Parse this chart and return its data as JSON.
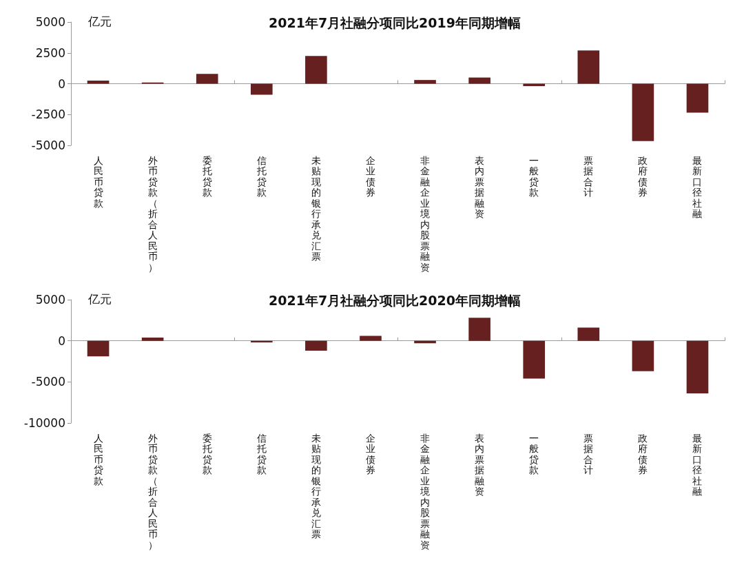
{
  "chart_data": [
    {
      "type": "bar",
      "title": "2021年7月社融分项同比2019年同期增幅",
      "ylabel": "亿元",
      "categories": [
        "人民币贷款",
        "外币贷款（折合人民币）",
        "委托贷款",
        "信托贷款",
        "未贴现的银行承兑汇票",
        "企业债券",
        "非金融企业境内股票融资",
        "表内票据融资",
        "一般贷款",
        "票据合计",
        "政府债券",
        "最新口径社融"
      ],
      "series": [
        {
          "color": "#66201f",
          "values": [
            250,
            100,
            800,
            -900,
            2250,
            0,
            300,
            500,
            -200,
            2700,
            -4650,
            -2350
          ]
        }
      ],
      "ylim": [
        -5000,
        5000
      ],
      "yticks": [
        -5000,
        -2500,
        0,
        2500,
        5000
      ]
    },
    {
      "type": "bar",
      "title": "2021年7月社融分项同比2020年同期增幅",
      "ylabel": "亿元",
      "categories": [
        "人民币贷款",
        "外币贷款（折合人民币）",
        "委托贷款",
        "信托贷款",
        "未贴现的银行承兑汇票",
        "企业债券",
        "非金融企业境内股票融资",
        "表内票据融资",
        "一般贷款",
        "票据合计",
        "政府债券",
        "最新口径社融"
      ],
      "series": [
        {
          "color": "#66201f",
          "values": [
            -1900,
            400,
            0,
            -200,
            -1200,
            600,
            -300,
            2800,
            -4600,
            1600,
            -3700,
            -6400
          ]
        }
      ],
      "ylim": [
        -10000,
        5000
      ],
      "yticks": [
        -10000,
        -5000,
        0,
        5000
      ]
    }
  ]
}
